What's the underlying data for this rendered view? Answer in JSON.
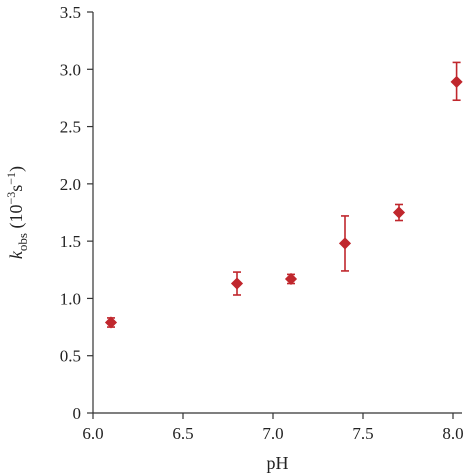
{
  "chart_data": {
    "type": "scatter",
    "xlabel": "pH",
    "ylabel": {
      "symbol": "k",
      "subscript": "obs",
      "unit_open": " (10",
      "unit_exp1": "−3",
      "unit_mid": "s",
      "unit_exp2": "−1",
      "unit_close": ")"
    },
    "xlim": [
      6.0,
      8.05
    ],
    "ylim": [
      0,
      3.5
    ],
    "xticks": [
      "6.0",
      "6.5",
      "7.0",
      "7.5",
      "8.0"
    ],
    "yticks": [
      "0",
      "0.5",
      "1.0",
      "1.5",
      "2.0",
      "2.5",
      "3.0",
      "3.5"
    ],
    "grid": false,
    "marker": "diamond",
    "color": "#c0272d",
    "series": [
      {
        "points": [
          {
            "x": 6.1,
            "y": 0.79,
            "err_low": 0.75,
            "err_high": 0.83
          },
          {
            "x": 6.8,
            "y": 1.13,
            "err_low": 1.03,
            "err_high": 1.23
          },
          {
            "x": 7.1,
            "y": 1.17,
            "err_low": 1.13,
            "err_high": 1.21
          },
          {
            "x": 7.4,
            "y": 1.48,
            "err_low": 1.24,
            "err_high": 1.72
          },
          {
            "x": 7.7,
            "y": 1.75,
            "err_low": 1.68,
            "err_high": 1.82
          },
          {
            "x": 8.02,
            "y": 2.89,
            "err_low": 2.73,
            "err_high": 3.06
          }
        ]
      }
    ]
  }
}
